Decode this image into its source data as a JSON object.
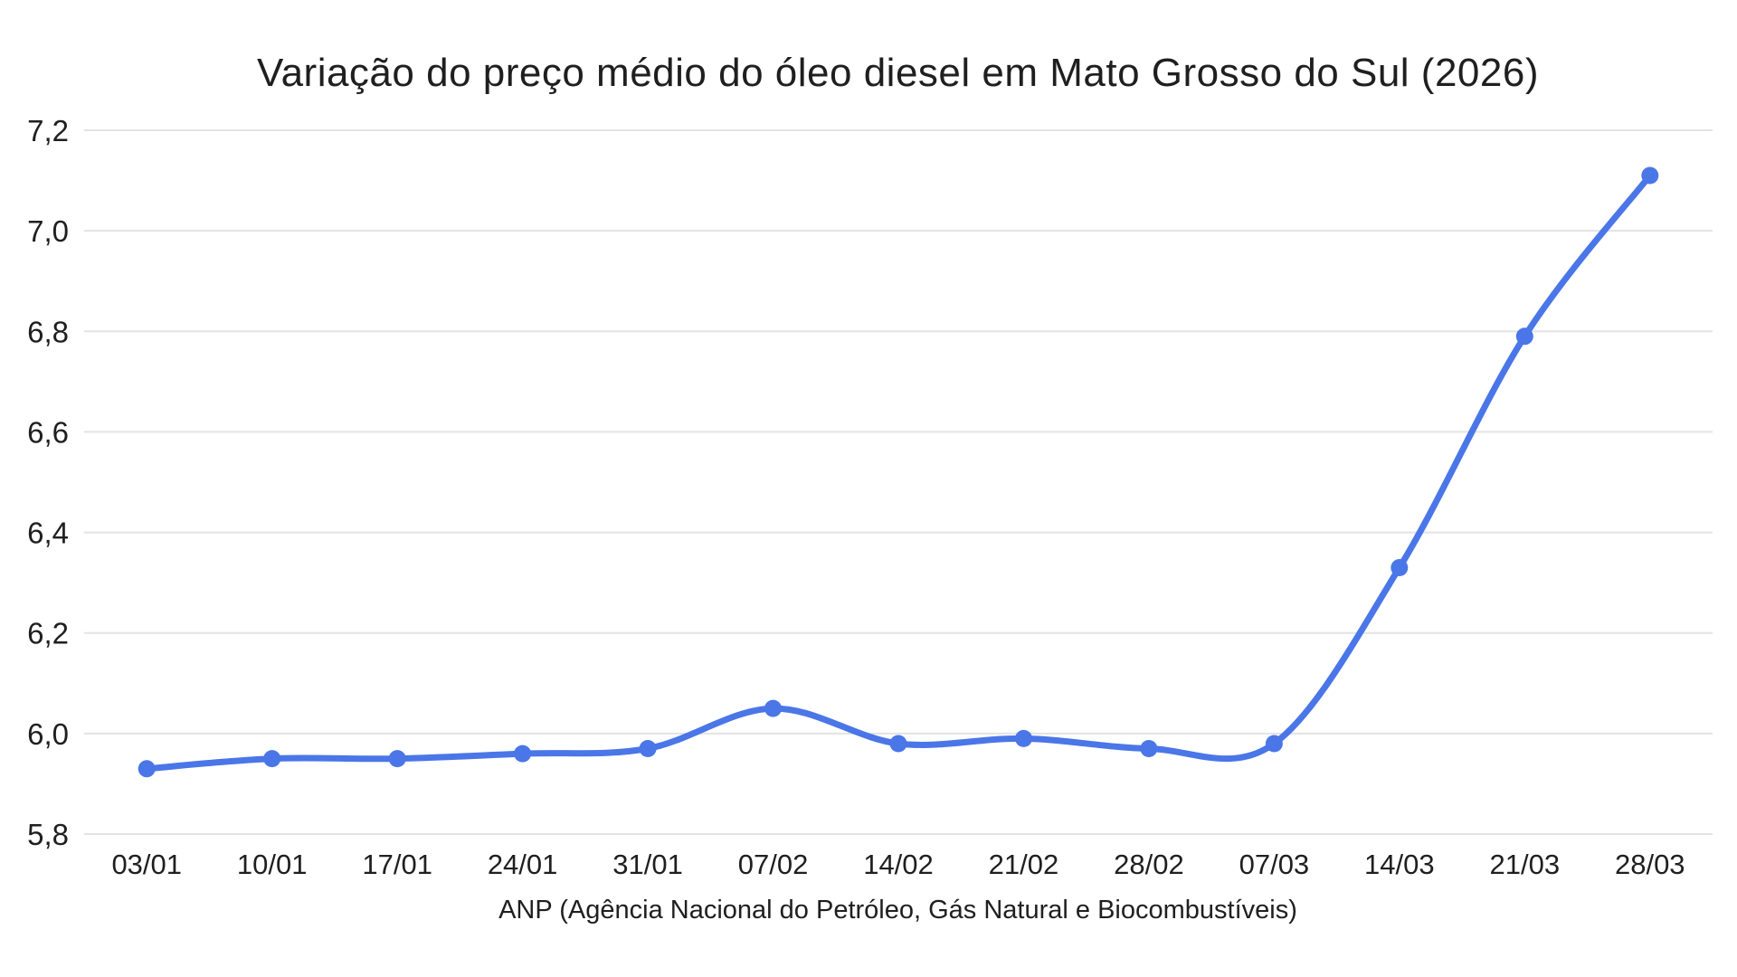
{
  "chart_data": {
    "type": "line",
    "title": "Variação do preço médio do óleo diesel em Mato Grosso do Sul (2026)",
    "xlabel": "ANP (Agência Nacional do Petróleo, Gás Natural e Biocombustíveis)",
    "ylabel": "",
    "categories": [
      "03/01",
      "10/01",
      "17/01",
      "24/01",
      "31/01",
      "07/02",
      "14/02",
      "21/02",
      "28/02",
      "07/03",
      "14/03",
      "21/03",
      "28/03"
    ],
    "values": [
      5.93,
      5.95,
      5.95,
      5.96,
      5.97,
      6.05,
      5.98,
      5.99,
      5.97,
      5.98,
      6.33,
      6.79,
      7.11
    ],
    "ylim": [
      5.8,
      7.2
    ],
    "y_ticks": [
      5.8,
      6.0,
      6.2,
      6.4,
      6.6,
      6.8,
      7.0,
      7.2
    ],
    "y_tick_labels": [
      "5,8",
      "6,0",
      "6,2",
      "6,4",
      "6,6",
      "6,8",
      "7,0",
      "7,2"
    ],
    "grid": "horizontal-only",
    "legend": "none",
    "smooth": true,
    "colors": {
      "line": "#4a76e8",
      "point": "#4a76e8",
      "gridline": "#e3e3e3",
      "tick_text": "#1f1f1f",
      "background": "#ffffff"
    }
  }
}
